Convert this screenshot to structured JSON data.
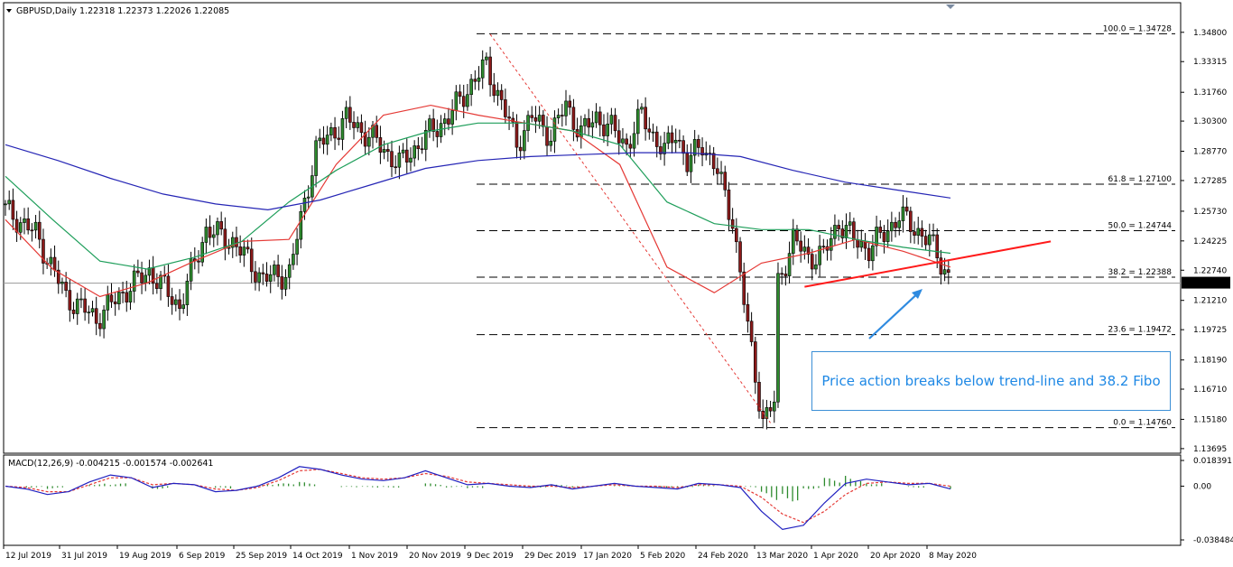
{
  "header": {
    "symbol_timeframe": "GBPUSD,Daily",
    "ohlc": "1.22318 1.22373 1.22026 1.22085"
  },
  "macd_header": "MACD(12,26,9) -0.004215 -0.001574 -0.002641",
  "annotation": "Price action breaks below trend-line and 38.2 Fibo",
  "colors": {
    "bull": "#2e8b2e",
    "bear": "#8b1a1a",
    "ma_fast": "#e53935",
    "ma_mid": "#1e9e5a",
    "ma_slow": "#2525b5",
    "trendline": "#ff1a1a",
    "arrow": "#2f8be0",
    "macd_line": "#2020c0",
    "macd_signal": "#e53935",
    "macd_hist": "#2e8b2e"
  },
  "chart_data": [
    {
      "type": "candlestick",
      "title": "GBPUSD,Daily",
      "ylim": [
        1.1369,
        1.3479
      ],
      "y_ticks": [
        "1.34800",
        "1.33315",
        "1.31760",
        "1.30300",
        "1.28770",
        "1.27285",
        "1.25730",
        "1.24225",
        "1.22740",
        "1.21210",
        "1.19725",
        "1.18190",
        "1.16710",
        "1.15180",
        "1.13695"
      ],
      "current_price": "1.22085",
      "x_ticks": [
        "12 Jul 2019",
        "31 Jul 2019",
        "19 Aug 2019",
        "6 Sep 2019",
        "25 Sep 2019",
        "14 Oct 2019",
        "1 Nov 2019",
        "20 Nov 2019",
        "9 Dec 2019",
        "29 Dec 2019",
        "17 Jan 2020",
        "5 Feb 2020",
        "24 Feb 2020",
        "13 Mar 2020",
        "1 Apr 2020",
        "20 Apr 2020",
        "8 May 2020"
      ],
      "series": [
        {
          "x": [
            0,
            8,
            16,
            24,
            31,
            38,
            46,
            53,
            60,
            68,
            75,
            82,
            90,
            97,
            104,
            112,
            117,
            123,
            127,
            131,
            135,
            139,
            144,
            148,
            152,
            156,
            160,
            164,
            168,
            171,
            174,
            177,
            180,
            184,
            188,
            192,
            196,
            200,
            204
          ],
          "close": [
            1.258,
            1.246,
            1.214,
            1.203,
            1.216,
            1.227,
            1.209,
            1.248,
            1.242,
            1.223,
            1.226,
            1.289,
            1.304,
            1.294,
            1.281,
            1.297,
            1.305,
            1.322,
            1.331,
            1.312,
            1.292,
            1.305,
            1.296,
            1.311,
            1.297,
            1.305,
            1.299,
            1.291,
            1.306,
            1.296,
            1.287,
            1.298,
            1.281,
            1.292,
            1.277,
            1.253,
            1.198,
            1.151,
            1.163
          ]
        },
        {
          "x": [
            176,
            180,
            184,
            188,
            192,
            196,
            200,
            204,
            208,
            212,
            216,
            220,
            224,
            228,
            232,
            236,
            240,
            244,
            248,
            250
          ],
          "close": [
            1.299,
            1.278,
            1.288,
            1.253,
            1.207,
            1.155,
            1.176,
            1.221,
            1.243,
            1.234,
            1.235,
            1.252,
            1.243,
            1.238,
            1.246,
            1.255,
            1.249,
            1.242,
            1.228,
            1.221
          ]
        }
      ],
      "moving_averages": [
        {
          "name": "MA-fast",
          "values": [
            1.253,
            1.228,
            1.214,
            1.221,
            1.232,
            1.242,
            1.243,
            1.281,
            1.306,
            1.311,
            1.306,
            1.302,
            1.298,
            1.281,
            1.229,
            1.216,
            1.231,
            1.236,
            1.243,
            1.237,
            1.229
          ]
        },
        {
          "name": "MA-mid",
          "values": [
            1.275,
            1.253,
            1.232,
            1.228,
            1.234,
            1.242,
            1.262,
            1.278,
            1.291,
            1.298,
            1.302,
            1.302,
            1.298,
            1.291,
            1.262,
            1.251,
            1.248,
            1.248,
            1.243,
            1.239,
            1.236
          ]
        },
        {
          "name": "MA-slow",
          "values": [
            1.291,
            1.283,
            1.274,
            1.266,
            1.261,
            1.258,
            1.263,
            1.271,
            1.279,
            1.283,
            1.285,
            1.286,
            1.287,
            1.287,
            1.285,
            1.278,
            1.272,
            1.268,
            1.264
          ]
        }
      ],
      "fibonacci": [
        {
          "level": "100.0",
          "price": "1.34728"
        },
        {
          "level": "61.8",
          "price": "1.27100"
        },
        {
          "level": "50.0",
          "price": "1.24744"
        },
        {
          "level": "38.2",
          "price": "1.22388"
        },
        {
          "level": "23.6",
          "price": "1.19472"
        },
        {
          "level": "0.0",
          "price": "1.14760"
        }
      ]
    },
    {
      "type": "bar",
      "title": "MACD(12,26,9) -0.004215 -0.001574 -0.002641",
      "ylim": [
        -0.038484,
        0.018391
      ],
      "y_ticks": [
        "0.018391",
        "0.00",
        "-0.038484"
      ],
      "macd_line": [
        0.0,
        -0.002,
        -0.006,
        -0.004,
        0.003,
        0.008,
        0.006,
        -0.001,
        0.002,
        0.001,
        -0.004,
        -0.003,
        0.0,
        0.006,
        0.014,
        0.012,
        0.008,
        0.005,
        0.004,
        0.006,
        0.011,
        0.006,
        0.001,
        0.002,
        0.0,
        -0.001,
        0.001,
        -0.002,
        0.0,
        0.002,
        0.0,
        -0.001,
        -0.002,
        0.002,
        0.001,
        -0.001,
        -0.018,
        -0.031,
        -0.028,
        -0.012,
        0.002,
        0.005,
        0.003,
        0.001,
        0.002,
        -0.002
      ],
      "signal_line": [
        0.0,
        -0.001,
        -0.004,
        -0.004,
        0.001,
        0.006,
        0.006,
        0.001,
        0.002,
        0.001,
        -0.002,
        -0.003,
        -0.001,
        0.004,
        0.011,
        0.012,
        0.009,
        0.006,
        0.005,
        0.006,
        0.009,
        0.007,
        0.003,
        0.002,
        0.001,
        0.0,
        0.0,
        -0.001,
        0.0,
        0.001,
        0.0,
        0.0,
        -0.001,
        0.001,
        0.001,
        0.0,
        -0.008,
        -0.02,
        -0.026,
        -0.018,
        -0.006,
        0.002,
        0.003,
        0.002,
        0.002,
        0.0
      ],
      "histogram": [
        0.0,
        -0.001,
        -0.002,
        0.0,
        0.002,
        0.002,
        0.0,
        -0.002,
        0.0,
        0.0,
        -0.002,
        0.0,
        0.001,
        0.002,
        0.003,
        0.0,
        -0.001,
        -0.001,
        -0.001,
        0.0,
        0.002,
        -0.001,
        -0.002,
        0.0,
        -0.001,
        -0.001,
        0.001,
        -0.001,
        0.0,
        0.001,
        0.0,
        -0.001,
        -0.001,
        0.001,
        0.0,
        -0.001,
        -0.01,
        -0.011,
        -0.002,
        0.006,
        0.008,
        0.003,
        0.0,
        -0.001,
        0.0,
        -0.002
      ]
    }
  ]
}
